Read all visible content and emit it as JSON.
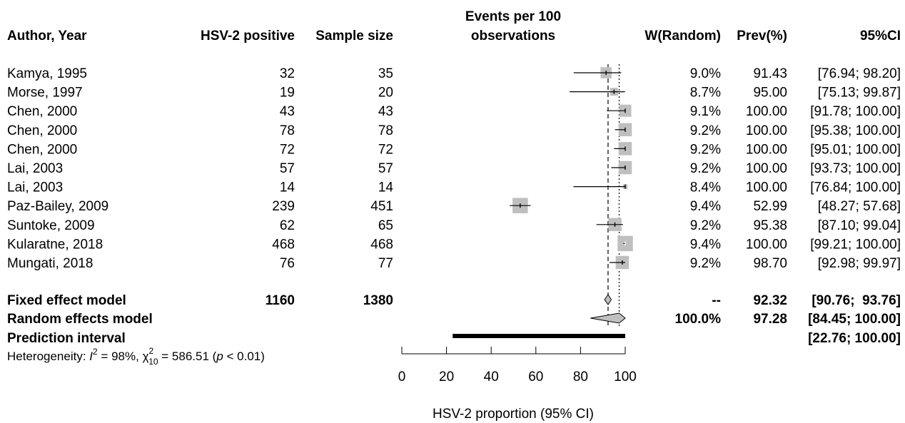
{
  "chart_data": {
    "type": "forest",
    "columns": {
      "author": "Author, Year",
      "positive": "HSV-2 positive",
      "sample": "Sample size",
      "plot_line1": "Events per 100",
      "plot_line2": "observations",
      "weight": "W(Random)",
      "prev": "Prev(%)",
      "ci": "95%CI"
    },
    "studies": [
      {
        "author": "Kamya, 1995",
        "positive": "32",
        "sample": "35",
        "weight": "9.0%",
        "prev": "91.43",
        "ci": "[76.94;  98.20]",
        "est": 91.43,
        "lo": 76.94,
        "hi": 98.2,
        "w": 9.0
      },
      {
        "author": "Morse, 1997",
        "positive": "19",
        "sample": "20",
        "weight": "8.7%",
        "prev": "95.00",
        "ci": "[75.13;  99.87]",
        "est": 95.0,
        "lo": 75.13,
        "hi": 99.87,
        "w": 8.7
      },
      {
        "author": "Chen, 2000",
        "positive": "43",
        "sample": "43",
        "weight": "9.1%",
        "prev": "100.00",
        "ci": "[91.78; 100.00]",
        "est": 100.0,
        "lo": 91.78,
        "hi": 100.0,
        "w": 9.1
      },
      {
        "author": "Chen, 2000",
        "positive": "78",
        "sample": "78",
        "weight": "9.2%",
        "prev": "100.00",
        "ci": "[95.38; 100.00]",
        "est": 100.0,
        "lo": 95.38,
        "hi": 100.0,
        "w": 9.2
      },
      {
        "author": "Chen, 2000",
        "positive": "72",
        "sample": "72",
        "weight": "9.2%",
        "prev": "100.00",
        "ci": "[95.01; 100.00]",
        "est": 100.0,
        "lo": 95.01,
        "hi": 100.0,
        "w": 9.2
      },
      {
        "author": "Lai, 2003",
        "positive": "57",
        "sample": "57",
        "weight": "9.2%",
        "prev": "100.00",
        "ci": "[93.73; 100.00]",
        "est": 100.0,
        "lo": 93.73,
        "hi": 100.0,
        "w": 9.2
      },
      {
        "author": "Lai, 2003",
        "positive": "14",
        "sample": "14",
        "weight": "8.4%",
        "prev": "100.00",
        "ci": "[76.84; 100.00]",
        "est": 100.0,
        "lo": 76.84,
        "hi": 100.0,
        "w": 8.4
      },
      {
        "author": "Paz-Bailey, 2009",
        "positive": "239",
        "sample": "451",
        "weight": "9.4%",
        "prev": "52.99",
        "ci": "[48.27;  57.68]",
        "est": 52.99,
        "lo": 48.27,
        "hi": 57.68,
        "w": 9.4
      },
      {
        "author": "Suntoke, 2009",
        "positive": "62",
        "sample": "65",
        "weight": "9.2%",
        "prev": "95.38",
        "ci": "[87.10;  99.04]",
        "est": 95.38,
        "lo": 87.1,
        "hi": 99.04,
        "w": 9.2
      },
      {
        "author": "Kularatne, 2018",
        "positive": "468",
        "sample": "468",
        "weight": "9.4%",
        "prev": "100.00",
        "ci": "[99.21; 100.00]",
        "est": 100.0,
        "lo": 99.21,
        "hi": 100.0,
        "w": 9.4
      },
      {
        "author": "Mungati, 2018",
        "positive": "76",
        "sample": "77",
        "weight": "9.2%",
        "prev": "98.70",
        "ci": "[92.98;  99.97]",
        "est": 98.7,
        "lo": 92.98,
        "hi": 99.97,
        "w": 9.2
      }
    ],
    "fixed": {
      "label": "Fixed effect model",
      "positive": "1160",
      "sample": "1380",
      "weight": "--",
      "prev": "92.32",
      "ci": "[90.76;  93.76]",
      "est": 92.32,
      "lo": 90.76,
      "hi": 93.76
    },
    "random": {
      "label": "Random effects model",
      "weight": "100.0%",
      "prev": "97.28",
      "ci": "[84.45; 100.00]",
      "est": 97.28,
      "lo": 84.45,
      "hi": 100.0
    },
    "prediction": {
      "label": "Prediction interval",
      "ci": "[22.76; 100.00]",
      "lo": 22.76,
      "hi": 100.0
    },
    "heterogeneity": {
      "prefix": "Heterogeneity: ",
      "i2_symbol": "I",
      "i2_exp": "2",
      "i2_value": " = 98%, ",
      "chi_symbol": "χ",
      "chi_sup": "2",
      "chi_sub": "10",
      "chi_value": " = 586.51 (",
      "p_symbol": "p",
      "p_value": " < 0.01)"
    },
    "x_axis": {
      "label": "HSV-2 proportion (95% CI)",
      "range": [
        0,
        100
      ],
      "ticks": [
        0,
        20,
        40,
        60,
        80,
        100
      ]
    },
    "reference_lines": {
      "fixed": 92.32,
      "random": 97.28
    }
  }
}
